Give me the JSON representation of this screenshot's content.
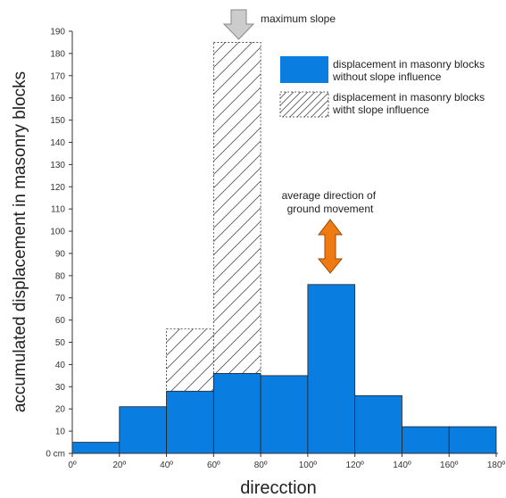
{
  "chart_data": {
    "type": "bar",
    "title": "",
    "xlabel": "direcction",
    "ylabel": "accumulated displacement in masonry blocks",
    "x_ticks": [
      "0º",
      "20º",
      "40º",
      "60º",
      "80º",
      "100º",
      "120º",
      "140º",
      "160º",
      "180º"
    ],
    "y_ticks": [
      "0 cm",
      "10",
      "20",
      "30",
      "40",
      "50",
      "60",
      "70",
      "80",
      "90",
      "100",
      "110",
      "120",
      "130",
      "140",
      "150",
      "160",
      "170",
      "180",
      "190"
    ],
    "xlim": [
      0,
      180
    ],
    "ylim": [
      0,
      190
    ],
    "bins": [
      [
        0,
        20
      ],
      [
        20,
        40
      ],
      [
        40,
        60
      ],
      [
        60,
        80
      ],
      [
        80,
        100
      ],
      [
        100,
        120
      ],
      [
        120,
        140
      ],
      [
        140,
        160
      ],
      [
        160,
        180
      ]
    ],
    "series": [
      {
        "name": "displacement in masonry blocks without slope influence",
        "style": "solid",
        "color": "#0a7de0",
        "values": [
          5,
          21,
          28,
          36,
          35,
          76,
          26,
          12,
          12
        ]
      },
      {
        "name": "displacement in masonry blocks witht slope influence",
        "style": "hatched",
        "color": "#ffffff",
        "values": [
          null,
          null,
          56,
          185,
          null,
          null,
          null,
          null,
          null
        ]
      }
    ],
    "legend_position": "top-right",
    "grid": false,
    "annotations": [
      {
        "text": "maximum slope",
        "icon": "down-arrow-icon",
        "x": 70,
        "color": "#cccccc"
      },
      {
        "text_lines": [
          "average direction of",
          "ground movement"
        ],
        "icon": "double-arrow-icon",
        "x": 110,
        "color": "#f07a12"
      }
    ]
  }
}
